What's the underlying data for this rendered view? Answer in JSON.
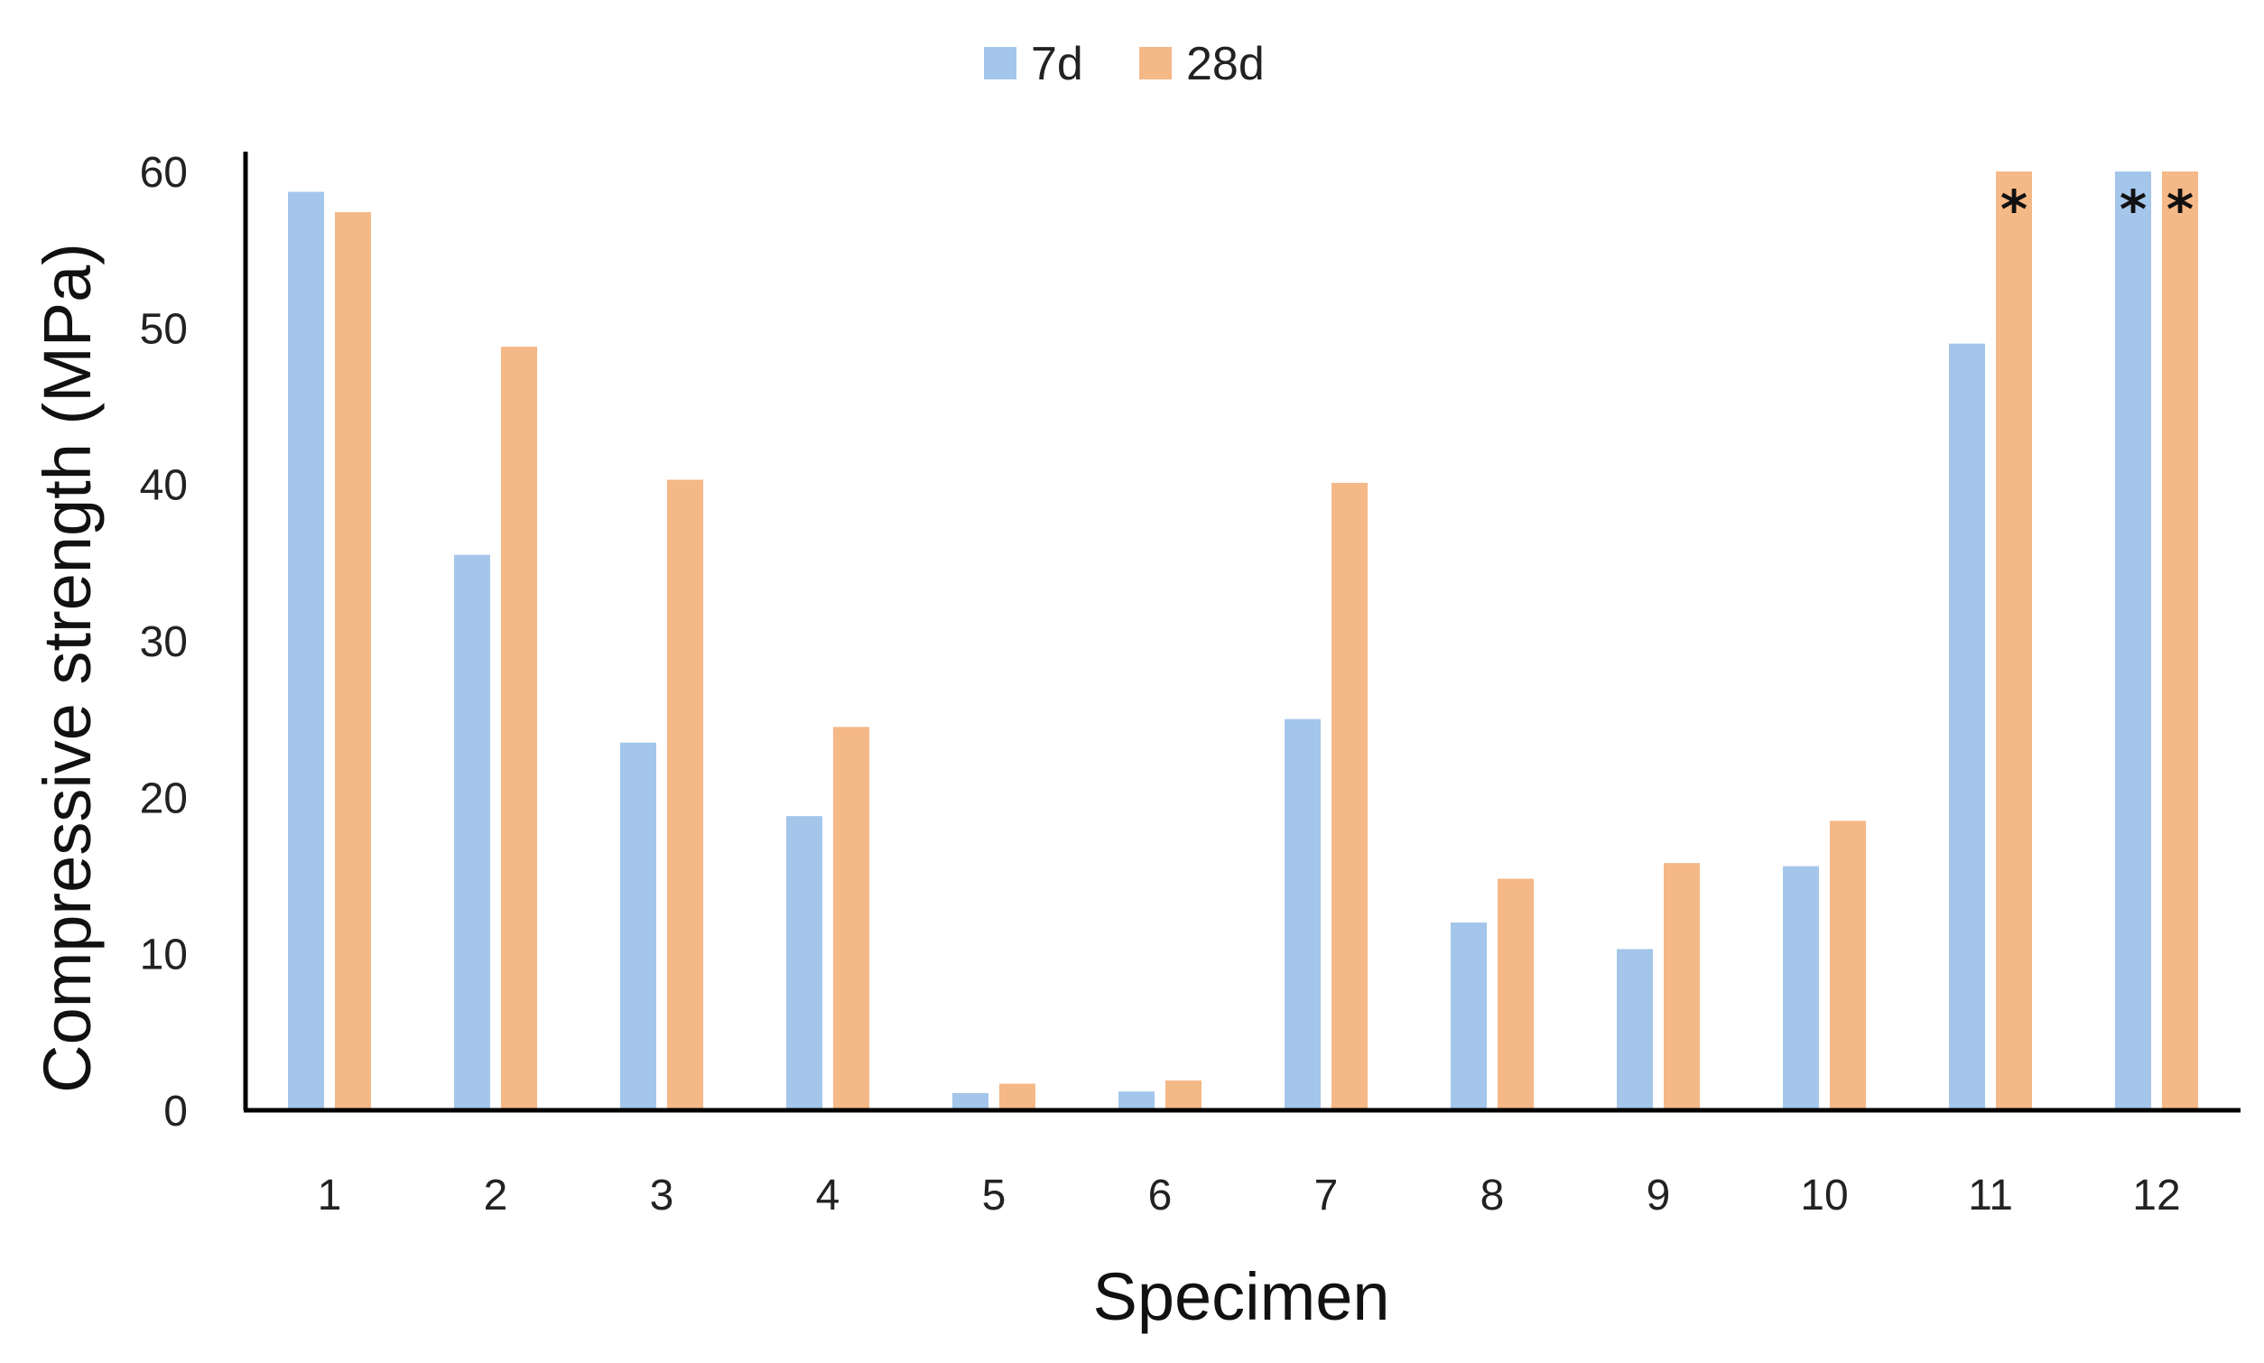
{
  "chart_data": {
    "type": "bar",
    "title": "",
    "xlabel": "Specimen",
    "ylabel": "Compressive strength (MPa)",
    "categories": [
      "1",
      "2",
      "3",
      "4",
      "5",
      "6",
      "7",
      "8",
      "9",
      "10",
      "11",
      "12"
    ],
    "ylim": [
      0,
      60
    ],
    "yticks": [
      "0",
      "10",
      "20",
      "30",
      "40",
      "50",
      "60"
    ],
    "legend_position": "top-center",
    "grid": false,
    "series": [
      {
        "name": "7d",
        "color": "#A4C6EA",
        "values": [
          58.7,
          35.5,
          23.5,
          18.8,
          1.1,
          1.2,
          25.0,
          12.0,
          10.3,
          15.6,
          49.0,
          60.0
        ],
        "annotations": [
          "",
          "",
          "",
          "",
          "",
          "",
          "",
          "",
          "",
          "",
          "",
          "*"
        ]
      },
      {
        "name": "28d",
        "color": "#F5B887",
        "values": [
          57.4,
          48.8,
          40.3,
          24.5,
          1.7,
          1.9,
          40.1,
          14.8,
          15.8,
          18.5,
          60.0,
          60.0
        ],
        "annotations": [
          "",
          "",
          "",
          "",
          "",
          "",
          "",
          "",
          "",
          "",
          "*",
          "*"
        ]
      }
    ]
  }
}
